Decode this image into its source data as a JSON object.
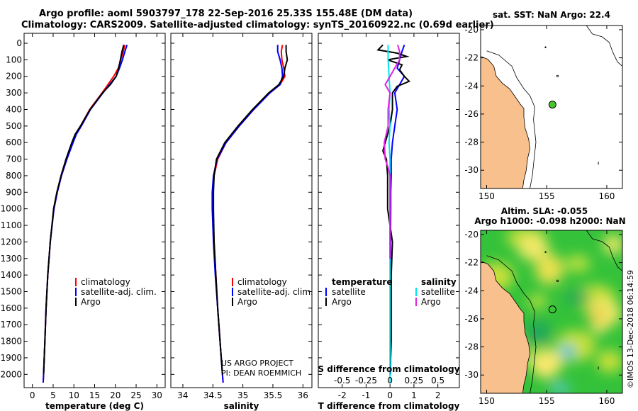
{
  "header": {
    "title_line1": "Argo profile: aoml 5903797_178 22-Sep-2016 25.33S 155.48E (DM data)",
    "title_line2": "Climatology: CARS2009. Satellite-adjusted climatology: synTS_20160922.nc (0.69d earlier)"
  },
  "colors": {
    "climatology": "#ff0000",
    "satellite": "#0000ff",
    "argo": "#000000",
    "sat_salinity": "#00e5ee",
    "argo_salinity": "#e020e0",
    "land": "#f7c08c",
    "marker": "#46c82d"
  },
  "depth_axis": {
    "ticks": [
      0,
      100,
      200,
      300,
      400,
      500,
      600,
      700,
      800,
      900,
      1000,
      1100,
      1200,
      1300,
      1400,
      1500,
      1600,
      1700,
      1800,
      1900,
      2000
    ],
    "range": [
      -60,
      2080
    ]
  },
  "temperature_panel": {
    "xlabel": "temperature (deg C)",
    "xticks": [
      0,
      5,
      10,
      15,
      20,
      25,
      30
    ],
    "xlim": [
      -2,
      32
    ],
    "legend": [
      "climatology",
      "satellite-adj. clim.",
      "Argo"
    ],
    "series": [
      {
        "name": "climatology",
        "depths": [
          10,
          50,
          100,
          150,
          200,
          250,
          300,
          400,
          500,
          550,
          600,
          700,
          800,
          900,
          1000,
          1200,
          1400,
          1600,
          1800,
          2000,
          2050
        ],
        "values": [
          22.3,
          21.9,
          21.3,
          20.7,
          19.6,
          18.2,
          16.8,
          13.8,
          11.6,
          10.4,
          9.7,
          8.3,
          7.0,
          6.0,
          5.2,
          4.3,
          3.7,
          3.3,
          3.0,
          2.7,
          2.6
        ]
      },
      {
        "name": "satellite-adj. clim.",
        "depths": [
          10,
          50,
          100,
          150,
          200,
          250,
          300,
          400,
          500,
          550,
          600,
          700,
          800,
          900,
          1000,
          1200,
          1400,
          1600,
          1800,
          2000,
          2050
        ],
        "values": [
          22.8,
          22.3,
          21.7,
          21.0,
          20.2,
          18.6,
          17.0,
          14.0,
          11.8,
          10.6,
          9.8,
          8.3,
          7.0,
          6.0,
          5.2,
          4.3,
          3.7,
          3.3,
          3.0,
          2.7,
          2.6
        ]
      },
      {
        "name": "Argo",
        "depths": [
          10,
          50,
          100,
          150,
          200,
          250,
          300,
          400,
          500,
          550,
          600,
          700,
          800,
          900,
          1000,
          1200,
          1400,
          1600,
          1800,
          2000
        ],
        "values": [
          22.0,
          21.6,
          21.2,
          20.8,
          20.2,
          18.8,
          16.9,
          13.9,
          11.6,
          10.3,
          9.5,
          8.1,
          6.9,
          5.9,
          5.1,
          4.3,
          3.7,
          3.3,
          3.0,
          2.7
        ]
      }
    ]
  },
  "salinity_panel": {
    "xlabel": "salinity",
    "xticks": [
      34,
      34.5,
      35,
      35.5,
      36
    ],
    "xlim": [
      33.8,
      36.15
    ],
    "legend": [
      "climatology",
      "satellite-adj. clim.",
      "Argo"
    ],
    "credit_line1": "US ARGO PROJECT",
    "credit_line2": "PI: DEAN ROEMMICH",
    "series": [
      {
        "name": "climatology",
        "depths": [
          10,
          50,
          100,
          150,
          200,
          250,
          300,
          400,
          500,
          600,
          700,
          800,
          900,
          1000,
          1200,
          1400,
          1600,
          1800,
          2000,
          2050
        ],
        "values": [
          35.66,
          35.64,
          35.65,
          35.68,
          35.7,
          35.62,
          35.45,
          35.18,
          34.94,
          34.72,
          34.58,
          34.52,
          34.5,
          34.5,
          34.52,
          34.55,
          34.58,
          34.62,
          34.66,
          34.67
        ]
      },
      {
        "name": "satellite-adj. clim.",
        "depths": [
          10,
          50,
          100,
          150,
          200,
          250,
          300,
          400,
          500,
          600,
          700,
          800,
          900,
          1000,
          1200,
          1400,
          1600,
          1800,
          2000,
          2050
        ],
        "values": [
          35.58,
          35.58,
          35.62,
          35.65,
          35.66,
          35.62,
          35.45,
          35.18,
          34.94,
          34.72,
          34.57,
          34.51,
          34.49,
          34.49,
          34.51,
          34.54,
          34.58,
          34.62,
          34.66,
          34.67
        ]
      },
      {
        "name": "Argo",
        "depths": [
          10,
          50,
          100,
          150,
          200,
          250,
          300,
          400,
          500,
          600,
          700,
          800,
          900,
          1000,
          1200,
          1400,
          1600,
          1800,
          2000
        ],
        "values": [
          35.72,
          35.72,
          35.74,
          35.7,
          35.68,
          35.6,
          35.43,
          35.16,
          34.92,
          34.7,
          34.56,
          34.52,
          34.51,
          34.51,
          34.52,
          34.55,
          34.58,
          34.62,
          34.66
        ]
      }
    ]
  },
  "difference_panel": {
    "xlabel": "T difference from climatology",
    "xticks": [
      -2,
      -1,
      0,
      1,
      2
    ],
    "xlim": [
      -3,
      2.9
    ],
    "s_label": "S difference from climatology",
    "s_ticks": [
      "-0.5",
      "-0.25",
      "0",
      "0.25",
      "0.5"
    ],
    "s_tick_values": [
      -0.5,
      -0.25,
      0,
      0.25,
      0.5
    ],
    "s_scale": 4,
    "legend_temperature": {
      "title": "temperature",
      "items": [
        "satellite",
        "Argo"
      ]
    },
    "legend_salinity": {
      "title": "salinity",
      "items": [
        "satellite",
        "Argo"
      ]
    },
    "series": [
      {
        "name": "T satellite",
        "depths": [
          10,
          50,
          100,
          150,
          200,
          250,
          300,
          400,
          500,
          600,
          700,
          800,
          900,
          1000,
          1200,
          1400,
          1600,
          1800,
          2000
        ],
        "values": [
          0.6,
          0.5,
          0.4,
          0.3,
          0.6,
          0.4,
          0.2,
          0.3,
          0.2,
          0.1,
          0.05,
          0.05,
          0.03,
          0.03,
          0.02,
          0.02,
          0.02,
          0.02,
          0.02
        ]
      },
      {
        "name": "T Argo",
        "depths": [
          10,
          40,
          60,
          80,
          100,
          130,
          160,
          200,
          230,
          260,
          300,
          350,
          400,
          500,
          600,
          650,
          700,
          800,
          900,
          1000,
          1200,
          1400,
          1600,
          1800,
          2000
        ],
        "values": [
          -0.3,
          -0.5,
          0.3,
          0.7,
          -0.1,
          0.5,
          0.4,
          0.6,
          0.8,
          0.3,
          0.1,
          0.1,
          0.1,
          0.0,
          -0.2,
          -0.3,
          -0.15,
          -0.1,
          -0.1,
          -0.1,
          0.1,
          0.05,
          0.05,
          0.05,
          0.0
        ]
      },
      {
        "name": "S satellite",
        "depths": [
          10,
          100,
          200,
          300,
          400,
          500,
          600,
          700,
          800,
          900,
          1000,
          1200,
          1400,
          1600,
          1800,
          2000,
          2050
        ],
        "values": [
          -0.02,
          -0.02,
          -0.01,
          0.0,
          -0.01,
          0.0,
          -0.01,
          0.0,
          0.0,
          0.0,
          0.0,
          0.0,
          0.0,
          0.0,
          0.0,
          0.0,
          0.0
        ]
      },
      {
        "name": "S Argo",
        "depths": [
          10,
          50,
          100,
          150,
          200,
          250,
          300,
          400,
          500,
          600,
          700,
          750,
          800,
          900,
          1000,
          1200,
          1300
        ],
        "values": [
          0.08,
          0.1,
          0.1,
          0.05,
          0.0,
          -0.05,
          0.0,
          -0.02,
          -0.02,
          -0.06,
          -0.05,
          -0.02,
          0.0,
          0.0,
          0.0,
          0.0,
          0.0
        ]
      }
    ]
  },
  "sst_map": {
    "title": "sat. SST: NaN Argo: 22.4",
    "lon_ticks": [
      150,
      155,
      160
    ],
    "lat_ticks": [
      -20,
      -22,
      -24,
      -26,
      -28,
      -30
    ],
    "lon_range": [
      149.5,
      161.3
    ],
    "lat_range": [
      -31.3,
      -19.7
    ],
    "argo_position": {
      "lon": 155.48,
      "lat": -25.33
    }
  },
  "sla_map": {
    "title_line1": "Altim. SLA: -0.055",
    "title_line2": "Argo h1000: -0.098 h2000: NaN",
    "lon_ticks": [
      150,
      155,
      160
    ],
    "lat_ticks": [
      -20,
      -22,
      -24,
      -26,
      -28,
      -30
    ],
    "credit": "©IMOS 13-Dec-2018 06:14:59"
  }
}
